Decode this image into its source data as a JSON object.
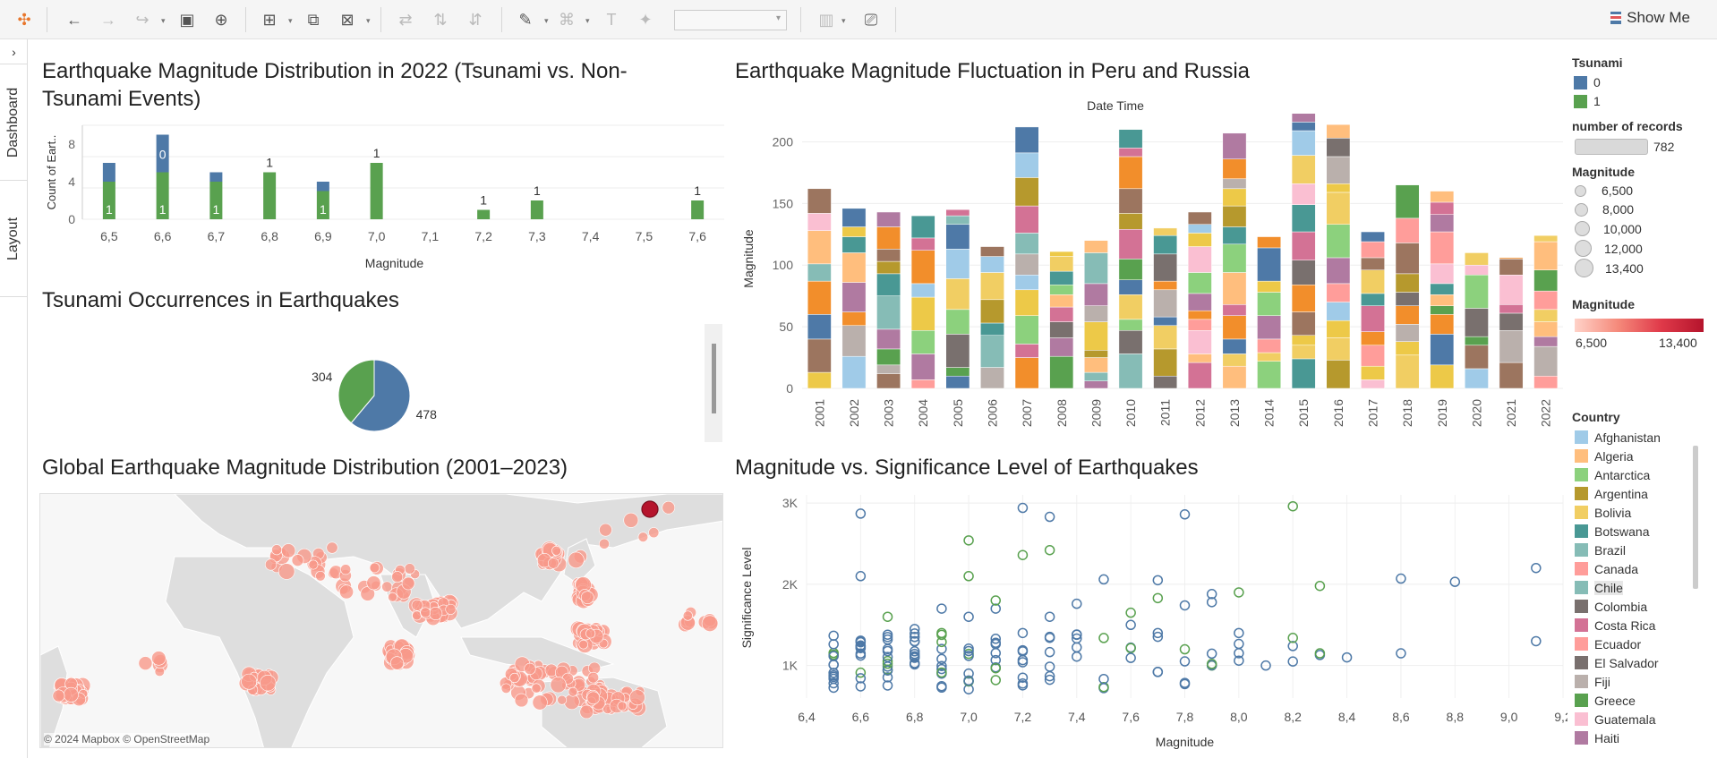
{
  "toolbar": {
    "show_me": "Show Me",
    "accent": "#e8762b"
  },
  "side_tabs": {
    "dashboard": "Dashboard",
    "layout": "Layout"
  },
  "sheet1": {
    "title": "Earthquake Magnitude Distribution in 2022 (Tsunami vs. Non-Tsunami Events)",
    "chart_data": {
      "type": "bar",
      "stacked": true,
      "categories": [
        "6,5",
        "6,6",
        "6,7",
        "6,8",
        "6,9",
        "7,0",
        "7,1",
        "7,2",
        "7,3",
        "7,4",
        "7,5",
        "7,6"
      ],
      "series": [
        {
          "name": "0",
          "color": "#4e79a7",
          "values": [
            2,
            4,
            1,
            0,
            1,
            0,
            0,
            0,
            0,
            0,
            0,
            0
          ]
        },
        {
          "name": "1",
          "color": "#59a14f",
          "values": [
            4,
            5,
            4,
            5,
            3,
            6,
            0,
            1,
            2,
            0,
            0,
            2
          ]
        }
      ],
      "bar_labels": [
        {
          "cat": "6,6",
          "series": "0",
          "text": "0"
        },
        {
          "cat": "6,5",
          "series": "1",
          "text": "1"
        },
        {
          "cat": "6,6",
          "series": "1",
          "text": "1"
        },
        {
          "cat": "6,7",
          "series": "1",
          "text": "1"
        },
        {
          "cat": "6,8",
          "series": "1",
          "text": "1"
        },
        {
          "cat": "6,9",
          "series": "1",
          "text": "1"
        },
        {
          "cat": "7,0",
          "series": "1",
          "text": "1"
        },
        {
          "cat": "7,2",
          "series": "1",
          "text": "1"
        },
        {
          "cat": "7,3",
          "series": "1",
          "text": "1"
        },
        {
          "cat": "7,6",
          "series": "1",
          "text": "1"
        }
      ],
      "xlabel": "Magnitude",
      "ylabel": "Count of Eart..",
      "yticks": [
        "0",
        "4",
        "8"
      ],
      "ylim": [
        0,
        10
      ]
    }
  },
  "sheet2": {
    "title": "Tsunami Occurrences in Earthquakes",
    "chart_data": {
      "type": "pie",
      "slices": [
        {
          "label": "478",
          "value": 478,
          "color": "#4e79a7"
        },
        {
          "label": "304",
          "value": 304,
          "color": "#59a14f"
        }
      ]
    }
  },
  "sheet3": {
    "title": "Global Earthquake Magnitude Distribution (2001–2023)",
    "credit": "© 2024 Mapbox © OpenStreetMap"
  },
  "sheet4": {
    "title": "Earthquake Magnitude Fluctuation in Peru and Russia",
    "chart_data": {
      "type": "bar",
      "stacked": true,
      "header": "Date Time",
      "ylabel": "Magnitude",
      "yticks": [
        "0",
        "50",
        "100",
        "150",
        "200"
      ],
      "ylim": [
        0,
        225
      ],
      "categories": [
        "2001",
        "2002",
        "2003",
        "2004",
        "2005",
        "2006",
        "2007",
        "2008",
        "2009",
        "2010",
        "2011",
        "2012",
        "2013",
        "2014",
        "2015",
        "2016",
        "2017",
        "2018",
        "2019",
        "2020",
        "2021",
        "2022"
      ],
      "totals": [
        162,
        146,
        143,
        140,
        145,
        115,
        212,
        111,
        120,
        210,
        130,
        143,
        207,
        123,
        223,
        214,
        127,
        165,
        160,
        110,
        106,
        124
      ],
      "palette": [
        "#edc948",
        "#a0cbe8",
        "#9c755f",
        "#ff9d9a",
        "#4e79a7",
        "#bab0ac",
        "#f28e2b",
        "#59a14f",
        "#b07aa1",
        "#86bcb6",
        "#79706e",
        "#d37295",
        "#ffbe7d",
        "#8cd17d",
        "#499894",
        "#b6992d",
        "#fabfd2",
        "#f1ce63"
      ]
    }
  },
  "sheet5": {
    "title": "Magnitude vs. Significance Level of Earthquakes",
    "chart_data": {
      "type": "scatter",
      "xlabel": "Magnitude",
      "ylabel": "Significance Level",
      "xticks": [
        "6,4",
        "6,6",
        "6,8",
        "7,0",
        "7,2",
        "7,4",
        "7,6",
        "7,8",
        "8,0",
        "8,2",
        "8,4",
        "8,6",
        "8,8",
        "9,0",
        "9,2"
      ],
      "xlim": [
        6.4,
        9.2
      ],
      "yticks": [
        "1K",
        "2K",
        "3K"
      ],
      "ylim": [
        600,
        3100
      ],
      "series": [
        {
          "name": "0",
          "color": "#4e79a7",
          "points": [
            [
              6.6,
              2870
            ],
            [
              6.6,
              2100
            ],
            [
              7.2,
              2940
            ],
            [
              7.3,
              2830
            ],
            [
              7.8,
              2860
            ],
            [
              7.5,
              2060
            ],
            [
              7.7,
              2050
            ],
            [
              7.4,
              1760
            ],
            [
              7.8,
              1740
            ],
            [
              7.9,
              1880
            ],
            [
              7.9,
              1780
            ],
            [
              8.0,
              1400
            ],
            [
              8.2,
              1240
            ],
            [
              8.3,
              1130
            ],
            [
              8.4,
              1100
            ],
            [
              8.6,
              2070
            ],
            [
              8.6,
              1150
            ],
            [
              8.8,
              2030
            ],
            [
              9.1,
              2200
            ],
            [
              9.1,
              1300
            ],
            [
              6.7,
              1320
            ],
            [
              6.8,
              1450
            ],
            [
              6.9,
              1700
            ],
            [
              7.0,
              1600
            ],
            [
              7.1,
              1700
            ],
            [
              7.2,
              1400
            ],
            [
              7.3,
              1600
            ],
            [
              7.6,
              1500
            ],
            [
              7.7,
              1400
            ],
            [
              8.1,
              1000
            ],
            [
              8.2,
              1050
            ]
          ]
        },
        {
          "name": "1",
          "color": "#59a14f",
          "points": [
            [
              7.0,
              2540
            ],
            [
              7.0,
              2100
            ],
            [
              7.2,
              2360
            ],
            [
              7.3,
              2420
            ],
            [
              8.2,
              2960
            ],
            [
              8.3,
              1980
            ],
            [
              7.7,
              1830
            ],
            [
              7.6,
              1650
            ],
            [
              8.0,
              1900
            ],
            [
              7.1,
              1800
            ],
            [
              6.9,
              1400
            ],
            [
              6.7,
              1600
            ],
            [
              8.2,
              1340
            ],
            [
              8.3,
              1150
            ],
            [
              7.9,
              1000
            ],
            [
              7.8,
              1200
            ]
          ]
        }
      ]
    }
  },
  "legends": {
    "tsunami": {
      "title": "Tsunami",
      "items": [
        {
          "label": "0",
          "color": "#4e79a7"
        },
        {
          "label": "1",
          "color": "#59a14f"
        }
      ]
    },
    "records": {
      "title": "number of records",
      "value": "782"
    },
    "mag_size": {
      "title": "Magnitude",
      "items": [
        "6,500",
        "8,000",
        "10,000",
        "12,000",
        "13,400"
      ]
    },
    "mag_color": {
      "title": "Magnitude",
      "min": "6,500",
      "max": "13,400"
    },
    "country": {
      "title": "Country",
      "items": [
        {
          "label": "Afghanistan",
          "color": "#a0cbe8"
        },
        {
          "label": "Algeria",
          "color": "#ffbe7d"
        },
        {
          "label": "Antarctica",
          "color": "#8cd17d"
        },
        {
          "label": "Argentina",
          "color": "#b6992d"
        },
        {
          "label": "Bolivia",
          "color": "#f1ce63"
        },
        {
          "label": "Botswana",
          "color": "#499894"
        },
        {
          "label": "Brazil",
          "color": "#86bcb6"
        },
        {
          "label": "Canada",
          "color": "#ff9d9a"
        },
        {
          "label": "Chile",
          "color": "#86bcb6"
        },
        {
          "label": "Colombia",
          "color": "#79706e"
        },
        {
          "label": "Costa Rica",
          "color": "#d37295"
        },
        {
          "label": "Ecuador",
          "color": "#ff9d9a"
        },
        {
          "label": "El Salvador",
          "color": "#79706e"
        },
        {
          "label": "Fiji",
          "color": "#bab0ac"
        },
        {
          "label": "Greece",
          "color": "#59a14f"
        },
        {
          "label": "Guatemala",
          "color": "#fabfd2"
        },
        {
          "label": "Haiti",
          "color": "#b07aa1"
        }
      ]
    }
  }
}
